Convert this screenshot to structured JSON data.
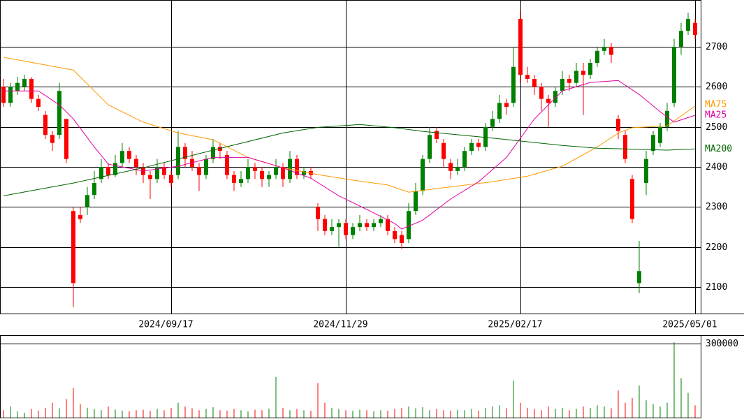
{
  "chart_data": {
    "type": "candlestick",
    "up_color": "#008000",
    "down_color": "#ff0000",
    "candles": [
      [
        2600,
        2620,
        2550,
        2560
      ],
      [
        2560,
        2610,
        2550,
        2600
      ],
      [
        2590,
        2625,
        2580,
        2610
      ],
      [
        2600,
        2630,
        2590,
        2620
      ],
      [
        2620,
        2625,
        2560,
        2570
      ],
      [
        2570,
        2580,
        2540,
        2550
      ],
      [
        2530,
        2540,
        2470,
        2480
      ],
      [
        2480,
        2490,
        2440,
        2460
      ],
      [
        2480,
        2610,
        2470,
        2590
      ],
      [
        2520,
        2520,
        2410,
        2420
      ],
      [
        2290,
        2300,
        2050,
        2110
      ],
      [
        2280,
        2300,
        2260,
        2270
      ],
      [
        2300,
        2350,
        2280,
        2330
      ],
      [
        2330,
        2390,
        2320,
        2360
      ],
      [
        2370,
        2420,
        2360,
        2400
      ],
      [
        2400,
        2410,
        2370,
        2380
      ],
      [
        2380,
        2430,
        2375,
        2410
      ],
      [
        2410,
        2460,
        2400,
        2440
      ],
      [
        2440,
        2450,
        2410,
        2420
      ],
      [
        2420,
        2430,
        2380,
        2400
      ],
      [
        2400,
        2410,
        2360,
        2380
      ],
      [
        2380,
        2390,
        2320,
        2370
      ],
      [
        2370,
        2420,
        2360,
        2400
      ],
      [
        2400,
        2410,
        2370,
        2380
      ],
      [
        2380,
        2390,
        2350,
        2360
      ],
      [
        2380,
        2490,
        2370,
        2450
      ],
      [
        2450,
        2460,
        2400,
        2420
      ],
      [
        2420,
        2440,
        2390,
        2400
      ],
      [
        2400,
        2410,
        2340,
        2380
      ],
      [
        2380,
        2430,
        2370,
        2420
      ],
      [
        2420,
        2470,
        2410,
        2450
      ],
      [
        2450,
        2460,
        2420,
        2440
      ],
      [
        2430,
        2440,
        2370,
        2380
      ],
      [
        2380,
        2390,
        2340,
        2360
      ],
      [
        2360,
        2390,
        2350,
        2370
      ],
      [
        2370,
        2420,
        2360,
        2400
      ],
      [
        2400,
        2410,
        2370,
        2390
      ],
      [
        2390,
        2400,
        2350,
        2370
      ],
      [
        2370,
        2390,
        2350,
        2380
      ],
      [
        2380,
        2420,
        2370,
        2400
      ],
      [
        2400,
        2410,
        2350,
        2370
      ],
      [
        2370,
        2440,
        2360,
        2420
      ],
      [
        2420,
        2430,
        2370,
        2380
      ],
      [
        2380,
        2400,
        2370,
        2390
      ],
      [
        2390,
        2400,
        2370,
        2380
      ],
      [
        2300,
        2310,
        2240,
        2270
      ],
      [
        2270,
        2280,
        2230,
        2240
      ],
      [
        2240,
        2270,
        2230,
        2250
      ],
      [
        2250,
        2270,
        2200,
        2260
      ],
      [
        2260,
        2270,
        2220,
        2230
      ],
      [
        2230,
        2260,
        2220,
        2250
      ],
      [
        2250,
        2280,
        2240,
        2260
      ],
      [
        2260,
        2270,
        2240,
        2250
      ],
      [
        2250,
        2270,
        2240,
        2260
      ],
      [
        2260,
        2280,
        2250,
        2270
      ],
      [
        2270,
        2280,
        2230,
        2240
      ],
      [
        2240,
        2250,
        2210,
        2220
      ],
      [
        2230,
        2240,
        2195,
        2210
      ],
      [
        2220,
        2310,
        2210,
        2290
      ],
      [
        2290,
        2360,
        2280,
        2340
      ],
      [
        2340,
        2430,
        2330,
        2420
      ],
      [
        2420,
        2500,
        2410,
        2480
      ],
      [
        2490,
        2500,
        2460,
        2470
      ],
      [
        2460,
        2470,
        2400,
        2420
      ],
      [
        2410,
        2420,
        2370,
        2390
      ],
      [
        2390,
        2420,
        2380,
        2400
      ],
      [
        2400,
        2450,
        2390,
        2440
      ],
      [
        2440,
        2470,
        2430,
        2460
      ],
      [
        2460,
        2470,
        2440,
        2450
      ],
      [
        2450,
        2510,
        2440,
        2500
      ],
      [
        2500,
        2540,
        2490,
        2520
      ],
      [
        2520,
        2580,
        2510,
        2560
      ],
      [
        2560,
        2570,
        2530,
        2550
      ],
      [
        2560,
        2700,
        2550,
        2650
      ],
      [
        2770,
        2790,
        2610,
        2630
      ],
      [
        2630,
        2650,
        2610,
        2620
      ],
      [
        2620,
        2630,
        2580,
        2600
      ],
      [
        2600,
        2610,
        2540,
        2570
      ],
      [
        2570,
        2580,
        2500,
        2560
      ],
      [
        2560,
        2600,
        2550,
        2590
      ],
      [
        2590,
        2640,
        2580,
        2620
      ],
      [
        2620,
        2630,
        2590,
        2610
      ],
      [
        2610,
        2660,
        2600,
        2640
      ],
      [
        2640,
        2660,
        2530,
        2630
      ],
      [
        2630,
        2670,
        2620,
        2660
      ],
      [
        2660,
        2700,
        2650,
        2690
      ],
      [
        2690,
        2720,
        2680,
        2700
      ],
      [
        2700,
        2710,
        2660,
        2680
      ],
      [
        2520,
        2530,
        2470,
        2490
      ],
      [
        2480,
        2490,
        2410,
        2420
      ],
      [
        2370,
        2380,
        2260,
        2270
      ],
      [
        2110,
        2215,
        2085,
        2140
      ],
      [
        2360,
        2440,
        2330,
        2420
      ],
      [
        2440,
        2490,
        2430,
        2480
      ],
      [
        2460,
        2510,
        2450,
        2500
      ],
      [
        2500,
        2560,
        2490,
        2540
      ],
      [
        2560,
        2720,
        2550,
        2700
      ],
      [
        2700,
        2760,
        2680,
        2740
      ],
      [
        2740,
        2785,
        2730,
        2770
      ],
      [
        2760,
        2770,
        2720,
        2730
      ]
    ],
    "volume": [
      30000,
      45000,
      25000,
      20000,
      35000,
      28000,
      40000,
      60000,
      38000,
      75000,
      120000,
      55000,
      40000,
      35000,
      30000,
      45000,
      33000,
      28000,
      25000,
      30000,
      32000,
      27000,
      35000,
      30000,
      40000,
      60000,
      45000,
      38000,
      30000,
      35000,
      42000,
      30000,
      28000,
      35000,
      30000,
      25000,
      32000,
      30000,
      36000,
      165000,
      40000,
      30000,
      35000,
      30000,
      28000,
      140000,
      60000,
      40000,
      35000,
      30000,
      28000,
      32000,
      30000,
      25000,
      30000,
      28000,
      35000,
      40000,
      45000,
      38000,
      42000,
      30000,
      35000,
      30000,
      28000,
      32000,
      30000,
      35000,
      28000,
      40000,
      45000,
      50000,
      38000,
      150000,
      60000,
      40000,
      35000,
      30000,
      45000,
      35000,
      40000,
      30000,
      35000,
      45000,
      40000,
      50000,
      45000,
      38000,
      110000,
      60000,
      80000,
      130000,
      70000,
      55000,
      45000,
      60000,
      305000,
      160000,
      100000,
      50000
    ],
    "series": [
      {
        "name": "MA75",
        "color": "#ff9900",
        "x": [
          0,
          10,
          15,
          20,
          25,
          30,
          35,
          40,
          45,
          50,
          55,
          58,
          62,
          70,
          75,
          80,
          85,
          88,
          90,
          95,
          99
        ],
        "values": [
          2674,
          2642,
          2555,
          2512,
          2485,
          2468,
          2424,
          2398,
          2381,
          2367,
          2355,
          2337,
          2346,
          2363,
          2377,
          2402,
          2450,
          2485,
          2498,
          2503,
          2552
        ]
      },
      {
        "name": "MA25",
        "color": "#e000a0",
        "x": [
          0,
          5,
          8,
          10,
          13,
          15,
          20,
          25,
          30,
          35,
          40,
          44,
          48,
          52,
          56,
          57,
          60,
          64,
          68,
          72,
          76,
          80,
          84,
          88,
          91,
          94,
          96,
          99
        ],
        "values": [
          2590,
          2590,
          2555,
          2520,
          2450,
          2407,
          2390,
          2402,
          2424,
          2424,
          2398,
          2372,
          2328,
          2294,
          2259,
          2245,
          2267,
          2320,
          2363,
          2424,
          2520,
          2590,
          2611,
          2616,
          2581,
          2538,
          2512,
          2529
        ]
      },
      {
        "name": "MA200",
        "color": "#006400",
        "x": [
          0,
          10,
          20,
          30,
          40,
          45,
          51,
          56,
          60,
          70,
          75,
          80,
          85,
          95,
          99
        ],
        "values": [
          2328,
          2360,
          2398,
          2442,
          2485,
          2499,
          2506,
          2498,
          2489,
          2472,
          2463,
          2454,
          2447,
          2442,
          2445
        ]
      }
    ],
    "xlim": [
      -0.5,
      99.8
    ],
    "xticks": [
      {
        "value": 24,
        "label": "2024/09/17"
      },
      {
        "value": 49,
        "label": "2024/11/29"
      },
      {
        "value": 74,
        "label": "2025/02/17"
      },
      {
        "value": 99,
        "label": "2025/05/01"
      }
    ],
    "ylim": [
      2034,
      2817
    ],
    "yticks": [
      2100,
      2200,
      2300,
      2400,
      2500,
      2600,
      2700
    ],
    "volume_ylim": [
      0,
      334000
    ],
    "volume_yticks": [
      300000
    ],
    "grid": true
  }
}
